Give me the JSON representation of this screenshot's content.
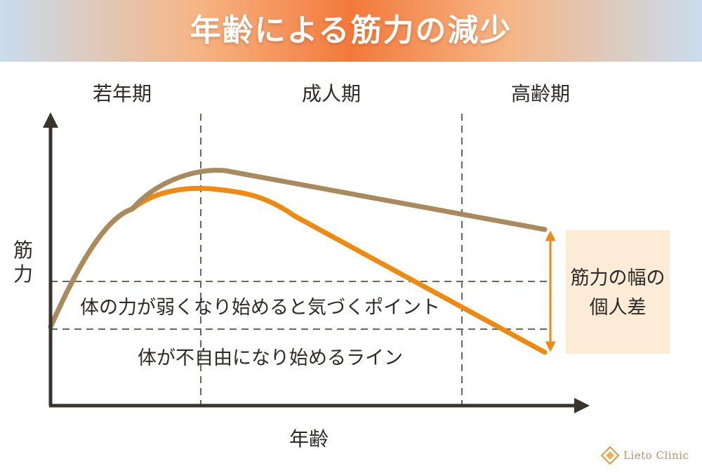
{
  "title": "年齢による筋力の減少",
  "periods": [
    "若年期",
    "成人期",
    "高齢期"
  ],
  "ylabel": "筋力",
  "xlabel": "年齢",
  "threshold_lines": {
    "upper": "体の力が弱くなり始めると気づくポイント",
    "lower": "体が不自由になり始めるライン"
  },
  "individual_difference": "筋力の幅の個人差",
  "logo": "Lieto Clinic",
  "colors": {
    "upper_curve": "#a88a5c",
    "lower_curve": "#f0890f",
    "axis": "#3a332c",
    "dashed": "#6b6660",
    "box": "#fcebd6"
  }
}
